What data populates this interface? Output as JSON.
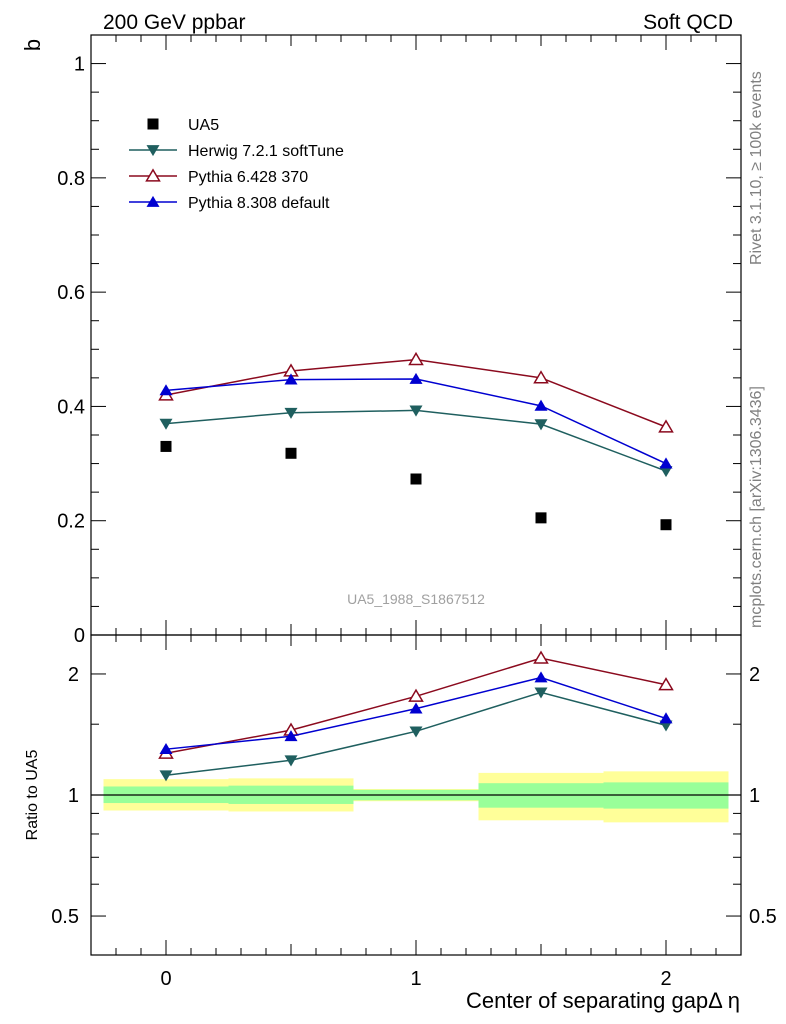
{
  "header": {
    "left": "200 GeV ppbar",
    "right": "Soft QCD"
  },
  "side_labels": {
    "rivet": "Rivet 3.1.10, ≥ 100k events",
    "mcplots": "mcplots.cern.ch [arXiv:1306.3436]"
  },
  "watermark": "UA5_1988_S1867512",
  "colors": {
    "UA5": "#000000",
    "herwig": "#1f5f5f",
    "pythia6": "#8b0a1e",
    "pythia8": "#0000d0",
    "band_inner": "#99ff99",
    "band_outer": "#ffff99"
  },
  "chart_data": [
    {
      "type": "scatter",
      "panel": "main",
      "ylabel": "b",
      "ylim": [
        0,
        1.05
      ],
      "yticks": [
        0,
        0.2,
        0.4,
        0.6,
        0.8,
        1
      ],
      "ytick_labels": [
        "0",
        "0.2",
        "0.4",
        "0.6",
        "0.8",
        "1"
      ],
      "xlim": [
        -0.3,
        2.3
      ],
      "legend_position": "top-left",
      "series": [
        {
          "name": "UA5",
          "marker": "square",
          "x": [
            0,
            0.5,
            1,
            1.5,
            2
          ],
          "values": [
            0.33,
            0.318,
            0.273,
            0.205,
            0.193
          ]
        },
        {
          "name": "Herwig 7.2.1 softTune",
          "marker": "triangle-down",
          "x": [
            0,
            0.5,
            1,
            1.5,
            2
          ],
          "values": [
            0.37,
            0.389,
            0.393,
            0.369,
            0.287
          ]
        },
        {
          "name": "Pythia 6.428 370",
          "marker": "triangle-up-open",
          "x": [
            0,
            0.5,
            1,
            1.5,
            2
          ],
          "values": [
            0.42,
            0.462,
            0.482,
            0.45,
            0.364
          ]
        },
        {
          "name": "Pythia 8.308 default",
          "marker": "triangle-up",
          "x": [
            0,
            0.5,
            1,
            1.5,
            2
          ],
          "values": [
            0.428,
            0.447,
            0.448,
            0.401,
            0.3
          ]
        }
      ]
    },
    {
      "type": "line",
      "panel": "ratio",
      "ylabel": "Ratio to UA5",
      "xlabel": "Center of separating gapΔ η",
      "scale": "log",
      "ylim": [
        0.4,
        2.5
      ],
      "yticks": [
        0.5,
        1,
        2
      ],
      "ytick_labels": [
        "0.5",
        "1",
        "2"
      ],
      "xlim": [
        -0.3,
        2.3
      ],
      "xticks": [
        0,
        1,
        2
      ],
      "xtick_labels": [
        "0",
        "1",
        "2"
      ],
      "series": [
        {
          "name": "Herwig 7.2.1 softTune",
          "x": [
            0,
            0.5,
            1,
            1.5,
            2
          ],
          "values": [
            1.12,
            1.22,
            1.44,
            1.8,
            1.49
          ]
        },
        {
          "name": "Pythia 6.428 370",
          "x": [
            0,
            0.5,
            1,
            1.5,
            2
          ],
          "values": [
            1.27,
            1.45,
            1.76,
            2.19,
            1.88
          ]
        },
        {
          "name": "Pythia 8.308 default",
          "x": [
            0,
            0.5,
            1,
            1.5,
            2
          ],
          "values": [
            1.3,
            1.4,
            1.64,
            1.96,
            1.55
          ]
        }
      ],
      "bands": [
        {
          "x_from": -0.25,
          "x_to": 0.25,
          "inner": [
            0.955,
            1.05
          ],
          "outer": [
            0.915,
            1.095
          ]
        },
        {
          "x_from": 0.25,
          "x_to": 0.75,
          "inner": [
            0.95,
            1.055
          ],
          "outer": [
            0.91,
            1.1
          ]
        },
        {
          "x_from": 0.75,
          "x_to": 1.25,
          "inner": [
            0.97,
            1.03
          ],
          "outer": [
            0.965,
            1.035
          ]
        },
        {
          "x_from": 1.25,
          "x_to": 1.75,
          "inner": [
            0.93,
            1.07
          ],
          "outer": [
            0.865,
            1.135
          ]
        },
        {
          "x_from": 1.75,
          "x_to": 2.25,
          "inner": [
            0.925,
            1.075
          ],
          "outer": [
            0.855,
            1.145
          ]
        }
      ]
    }
  ]
}
